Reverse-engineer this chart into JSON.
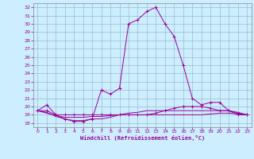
{
  "xlabel": "Windchill (Refroidissement éolien,°C)",
  "background_color": "#cceeff",
  "grid_color": "#aaddcc",
  "line_color": "#990099",
  "xlim": [
    -0.5,
    23.5
  ],
  "ylim": [
    17.5,
    32.5
  ],
  "xticks": [
    0,
    1,
    2,
    3,
    4,
    5,
    6,
    7,
    8,
    9,
    10,
    11,
    12,
    13,
    14,
    15,
    16,
    17,
    18,
    19,
    20,
    21,
    22,
    23
  ],
  "yticks": [
    18,
    19,
    20,
    21,
    22,
    23,
    24,
    25,
    26,
    27,
    28,
    29,
    30,
    31,
    32
  ],
  "series": [
    {
      "x": [
        0,
        1,
        2,
        3,
        4,
        5,
        6,
        7,
        8,
        9,
        10,
        11,
        12,
        13,
        14,
        15,
        16,
        17,
        18,
        19,
        20,
        21,
        22,
        23
      ],
      "y": [
        19.5,
        20.2,
        19.0,
        18.5,
        18.2,
        18.2,
        18.5,
        22.0,
        21.5,
        22.2,
        30.0,
        30.5,
        31.5,
        32.0,
        30.0,
        28.5,
        25.0,
        21.0,
        20.2,
        20.5,
        20.5,
        19.5,
        19.0,
        19.0
      ],
      "marker": "+"
    },
    {
      "x": [
        0,
        1,
        2,
        3,
        4,
        5,
        6,
        7,
        8,
        9,
        10,
        11,
        12,
        13,
        14,
        15,
        16,
        17,
        18,
        19,
        20,
        21,
        22,
        23
      ],
      "y": [
        19.5,
        19.2,
        18.9,
        18.7,
        18.7,
        18.7,
        18.8,
        18.8,
        18.9,
        19.0,
        19.0,
        19.0,
        19.0,
        19.0,
        19.0,
        19.0,
        19.0,
        19.0,
        19.0,
        19.1,
        19.2,
        19.2,
        19.1,
        19.0
      ],
      "marker": null
    },
    {
      "x": [
        0,
        1,
        2,
        3,
        4,
        5,
        6,
        7,
        8,
        9,
        10,
        11,
        12,
        13,
        14,
        15,
        16,
        17,
        18,
        19,
        20,
        21,
        22,
        23
      ],
      "y": [
        19.5,
        19.3,
        18.8,
        18.5,
        18.3,
        18.3,
        18.5,
        18.5,
        18.7,
        19.0,
        19.2,
        19.3,
        19.5,
        19.5,
        19.5,
        19.5,
        19.5,
        19.5,
        19.5,
        19.5,
        19.5,
        19.5,
        19.3,
        19.0
      ],
      "marker": null
    },
    {
      "x": [
        0,
        1,
        2,
        3,
        4,
        5,
        6,
        7,
        8,
        9,
        10,
        11,
        12,
        13,
        14,
        15,
        16,
        17,
        18,
        19,
        20,
        21,
        22,
        23
      ],
      "y": [
        19.5,
        19.5,
        19.0,
        19.0,
        19.0,
        19.0,
        19.0,
        19.0,
        19.0,
        19.0,
        19.0,
        19.0,
        19.0,
        19.2,
        19.5,
        19.8,
        20.0,
        20.0,
        20.0,
        19.8,
        19.5,
        19.5,
        19.2,
        19.0
      ],
      "marker": "+"
    }
  ]
}
